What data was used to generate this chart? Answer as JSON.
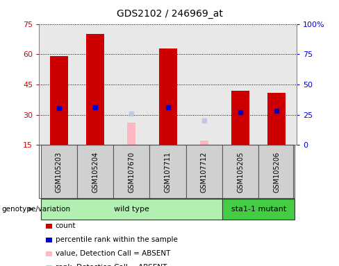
{
  "title": "GDS2102 / 246969_at",
  "samples": [
    "GSM105203",
    "GSM105204",
    "GSM107670",
    "GSM107711",
    "GSM107712",
    "GSM105205",
    "GSM105206"
  ],
  "count_values": [
    59,
    70,
    null,
    63,
    null,
    42,
    41
  ],
  "count_absent": [
    null,
    null,
    26,
    null,
    17,
    null,
    null
  ],
  "rank_values": [
    30.5,
    31,
    null,
    31,
    null,
    27,
    28
  ],
  "rank_absent": [
    null,
    null,
    26,
    null,
    20,
    null,
    null
  ],
  "ylim_left": [
    15,
    75
  ],
  "ylim_right": [
    0,
    100
  ],
  "yticks_left": [
    15,
    30,
    45,
    60,
    75
  ],
  "yticks_right": [
    0,
    25,
    50,
    75,
    100
  ],
  "ytick_right_labels": [
    "0",
    "25",
    "50",
    "75",
    "100%"
  ],
  "groups": [
    {
      "label": "wild type",
      "indices": [
        0,
        1,
        2,
        3,
        4
      ],
      "color": "#b2f0b2"
    },
    {
      "label": "sta1-1 mutant",
      "indices": [
        5,
        6
      ],
      "color": "#44cc44"
    }
  ],
  "bar_width": 0.5,
  "count_color": "#cc0000",
  "rank_color": "#0000cc",
  "absent_value_color": "#ffb6c1",
  "absent_rank_color": "#c0c8e8",
  "background_color": "#ffffff",
  "plot_bg_color": "#e8e8e8",
  "label_bg_color": "#d0d0d0",
  "left_axis_color": "#cc0000",
  "right_axis_color": "#0000cc",
  "legend_items": [
    {
      "color": "#cc0000",
      "label": "count"
    },
    {
      "color": "#0000cc",
      "label": "percentile rank within the sample"
    },
    {
      "color": "#ffb6c1",
      "label": "value, Detection Call = ABSENT"
    },
    {
      "color": "#c0c8e8",
      "label": "rank, Detection Call = ABSENT"
    }
  ]
}
